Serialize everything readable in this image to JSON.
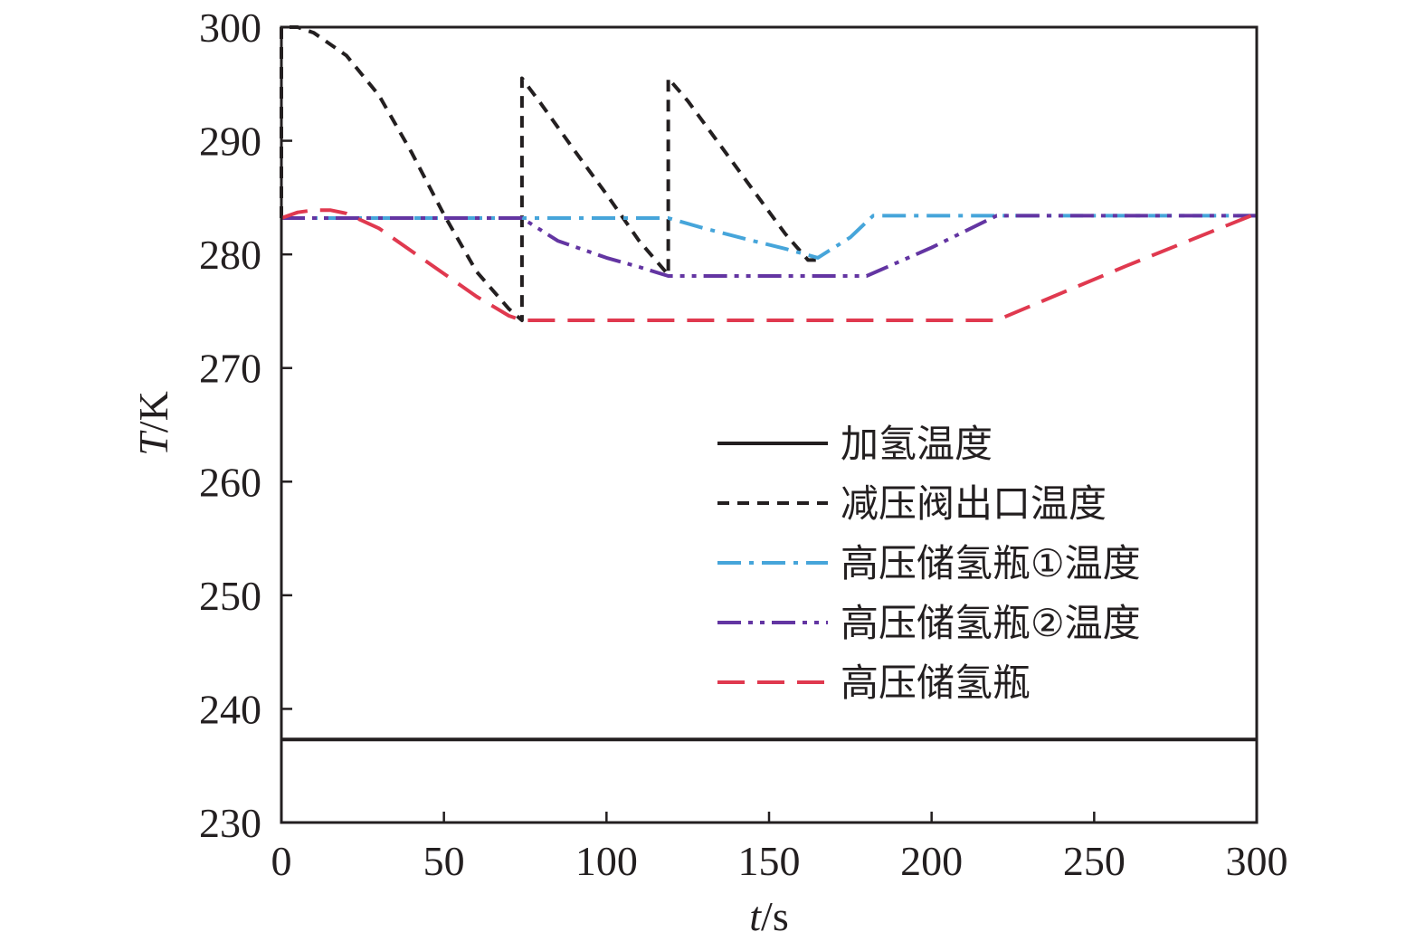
{
  "chart_data": {
    "type": "line",
    "xlabel_var": "t",
    "xlabel_unit": "/s",
    "ylabel_var": "T",
    "ylabel_unit": "/K",
    "xlim": [
      0,
      300
    ],
    "ylim": [
      230,
      300
    ],
    "xticks": [
      0,
      50,
      100,
      150,
      200,
      250,
      300
    ],
    "yticks": [
      230,
      240,
      250,
      260,
      270,
      280,
      290,
      300
    ],
    "grid": false,
    "legend_position": "bottom-right",
    "series": [
      {
        "name": "加氢温度",
        "color": "#231f20",
        "style": "solid",
        "x": [
          0,
          300
        ],
        "y": [
          237.3,
          237.3
        ]
      },
      {
        "name": "减压阀出口温度",
        "color": "#231f20",
        "style": "dash-short",
        "x": [
          0,
          0,
          5,
          10,
          20,
          30,
          40,
          50,
          60,
          70,
          74,
          74,
          80,
          90,
          100,
          110,
          119,
          119,
          125,
          135,
          145,
          155,
          162,
          165
        ],
        "y": [
          283.2,
          300,
          300,
          299.5,
          297.5,
          294,
          289,
          283.5,
          278.5,
          275.2,
          274.2,
          295.5,
          293.2,
          289.2,
          285.3,
          281.2,
          278.2,
          295.5,
          293.5,
          289.6,
          285.7,
          281.8,
          279.5,
          279.5
        ]
      },
      {
        "name": "高压储氢瓶①温度",
        "color": "#46a5da",
        "style": "dash-dot",
        "x": [
          0,
          74,
          119,
          130,
          145,
          155,
          165,
          175,
          182,
          220,
          300
        ],
        "y": [
          283.2,
          283.2,
          283.2,
          282.3,
          281.2,
          280.5,
          279.7,
          281.5,
          283.4,
          283.4,
          283.4
        ]
      },
      {
        "name": "高压储氢瓶②温度",
        "color": "#6335a2",
        "style": "dash-dot-dot",
        "x": [
          0,
          74,
          85,
          100,
          110,
          119,
          150,
          180,
          200,
          220,
          300
        ],
        "y": [
          283.2,
          283.2,
          281.2,
          279.7,
          278.9,
          278.1,
          278.1,
          278.1,
          280.6,
          283.4,
          283.4
        ]
      },
      {
        "name": "高压储氢瓶",
        "color": "#e0394f",
        "style": "dash-long",
        "x": [
          0,
          5,
          10,
          15,
          20,
          30,
          40,
          50,
          60,
          70,
          74,
          150,
          220,
          240,
          260,
          280,
          300
        ],
        "y": [
          283.2,
          283.7,
          283.9,
          283.9,
          283.6,
          282.3,
          280.3,
          278.3,
          276.3,
          274.6,
          274.2,
          274.2,
          274.2,
          276.6,
          279.0,
          281.3,
          283.6
        ]
      }
    ]
  }
}
